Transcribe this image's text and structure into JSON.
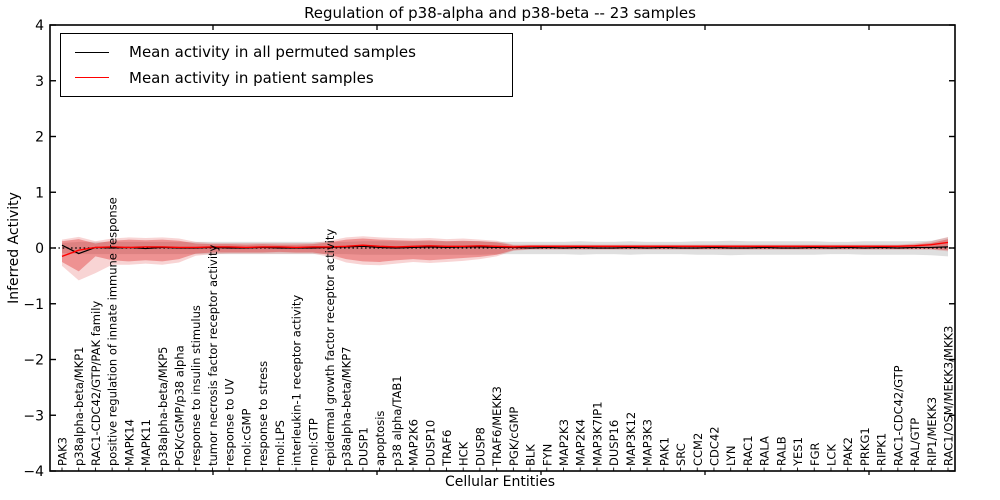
{
  "title": "Regulation of p38-alpha and p38-beta -- 23 samples",
  "axes": {
    "xlabel": "Cellular Entities",
    "ylabel": "Inferred Activity",
    "ytick_labels": [
      "4",
      "3",
      "2",
      "1",
      "0",
      "−1",
      "−2",
      "−3",
      "−4"
    ],
    "ytick_values": [
      4,
      3,
      2,
      1,
      0,
      -1,
      -2,
      -3,
      -4
    ],
    "ylim": [
      -4,
      4
    ]
  },
  "legend": {
    "entries": [
      {
        "label": "Mean activity in all permuted samples",
        "color": "#000000"
      },
      {
        "label": "Mean activity in patient samples",
        "color": "#ff0000"
      }
    ]
  },
  "colors": {
    "permuted_line": "#000000",
    "patient_line": "#ff0000",
    "patient_band": "#dc2828",
    "permuted_band": "#8c8c8c",
    "zero_line": "#000000"
  },
  "chart_data": {
    "type": "line",
    "title": "Regulation of p38-alpha and p38-beta -- 23 samples",
    "xlabel": "Cellular Entities",
    "ylabel": "Inferred Activity",
    "ylim": [
      -4,
      4
    ],
    "grid": false,
    "legend_position": "upper left",
    "zero_reference_line": true,
    "categories": [
      "PAK3",
      "p38alpha-beta/MKP1",
      "RAC1-CDC42/GTP/PAK family",
      "positive regulation of innate immune response",
      "MAPK14",
      "MAPK11",
      "p38alpha-beta/MKP5",
      "PGK/cGMP/p38 alpha",
      "response to insulin stimulus",
      "tumor necrosis factor receptor activity",
      "response to UV",
      "mol:cGMP",
      "response to stress",
      "mol:LPS",
      "interleukin-1 receptor activity",
      "mol:GTP",
      "epidermal growth factor receptor activity",
      "p38alpha-beta/MKP7",
      "DUSP1",
      "apoptosis",
      "p38 alpha/TAB1",
      "MAP2K6",
      "DUSP10",
      "TRAF6",
      "HCK",
      "DUSP8",
      "TRAF6/MEKK3",
      "PGK/cGMP",
      "BLK",
      "FYN",
      "MAP2K3",
      "MAP2K4",
      "MAP3K7IP1",
      "DUSP16",
      "MAP3K12",
      "MAP3K3",
      "PAK1",
      "SRC",
      "CCM2",
      "CDC42",
      "LYN",
      "RAC1",
      "RALA",
      "RALB",
      "YES1",
      "FGR",
      "LCK",
      "PAK2",
      "PRKG1",
      "RIPK1",
      "RAC1-CDC42/GTP",
      "RAL/GTP",
      "RIP1/MEKK3",
      "RAC1/OSM/MEKK3/MKK3"
    ],
    "series": [
      {
        "name": "Mean activity in all permuted samples",
        "color": "#000000",
        "width": 1.2,
        "values": [
          0.05,
          -0.1,
          0.01,
          0.0,
          0.01,
          -0.01,
          0.01,
          0.0,
          0.0,
          0.01,
          0.0,
          0.0,
          0.01,
          0.0,
          0.0,
          0.0,
          0.01,
          0.02,
          0.03,
          0.01,
          0.0,
          0.01,
          0.02,
          0.01,
          0.02,
          0.02,
          0.01,
          0.01,
          0.0,
          0.01,
          0.0,
          0.01,
          0.0,
          0.0,
          0.01,
          0.0,
          0.01,
          0.0,
          0.0,
          0.01,
          0.0,
          0.0,
          0.01,
          0.0,
          0.0,
          0.01,
          0.0,
          0.01,
          0.0,
          0.01,
          0.0,
          0.01,
          0.01,
          0.02
        ]
      },
      {
        "name": "Mean activity in patient samples",
        "color": "#ff0000",
        "width": 1.4,
        "values": [
          -0.15,
          -0.04,
          0.01,
          0.02,
          0.01,
          0.02,
          0.02,
          0.01,
          0.01,
          0.02,
          0.02,
          0.01,
          0.02,
          0.02,
          0.01,
          0.02,
          0.02,
          0.03,
          0.05,
          0.03,
          0.02,
          0.03,
          0.04,
          0.03,
          0.03,
          0.04,
          0.03,
          0.02,
          0.03,
          0.03,
          0.03,
          0.03,
          0.03,
          0.03,
          0.03,
          0.03,
          0.03,
          0.03,
          0.03,
          0.03,
          0.03,
          0.03,
          0.03,
          0.03,
          0.03,
          0.03,
          0.03,
          0.03,
          0.03,
          0.03,
          0.03,
          0.04,
          0.06,
          0.1
        ]
      }
    ],
    "bands": [
      {
        "name": "permuted-std",
        "color": "#8c8c8c",
        "opacity": 0.28,
        "upper": [
          0.09,
          0.11,
          0.11,
          0.11,
          0.11,
          0.11,
          0.11,
          0.11,
          0.11,
          0.11,
          0.11,
          0.11,
          0.11,
          0.11,
          0.11,
          0.11,
          0.11,
          0.11,
          0.12,
          0.12,
          0.12,
          0.12,
          0.12,
          0.12,
          0.12,
          0.12,
          0.11,
          0.11,
          0.11,
          0.11,
          0.11,
          0.12,
          0.11,
          0.11,
          0.12,
          0.11,
          0.11,
          0.11,
          0.12,
          0.12,
          0.13,
          0.12,
          0.12,
          0.12,
          0.12,
          0.12,
          0.11,
          0.11,
          0.12,
          0.12,
          0.12,
          0.12,
          0.13,
          0.19
        ],
        "lower": [
          -0.09,
          -0.11,
          -0.11,
          -0.11,
          -0.11,
          -0.11,
          -0.11,
          -0.11,
          -0.11,
          -0.11,
          -0.11,
          -0.11,
          -0.11,
          -0.11,
          -0.11,
          -0.11,
          -0.11,
          -0.11,
          -0.12,
          -0.12,
          -0.12,
          -0.12,
          -0.12,
          -0.12,
          -0.12,
          -0.12,
          -0.11,
          -0.11,
          -0.11,
          -0.11,
          -0.11,
          -0.12,
          -0.11,
          -0.11,
          -0.12,
          -0.11,
          -0.11,
          -0.11,
          -0.12,
          -0.12,
          -0.13,
          -0.12,
          -0.12,
          -0.12,
          -0.12,
          -0.12,
          -0.11,
          -0.11,
          -0.12,
          -0.12,
          -0.12,
          -0.12,
          -0.13,
          -0.15
        ]
      },
      {
        "name": "patient-std-outer",
        "color": "#dc2828",
        "opacity": 0.2,
        "upper": [
          0.15,
          0.2,
          0.12,
          0.17,
          0.19,
          0.18,
          0.19,
          0.17,
          0.11,
          0.09,
          0.09,
          0.09,
          0.09,
          0.09,
          0.09,
          0.09,
          0.13,
          0.19,
          0.21,
          0.19,
          0.18,
          0.17,
          0.18,
          0.16,
          0.17,
          0.15,
          0.13,
          0.06,
          0.06,
          0.06,
          0.06,
          0.06,
          0.06,
          0.06,
          0.06,
          0.06,
          0.06,
          0.06,
          0.06,
          0.06,
          0.06,
          0.06,
          0.06,
          0.06,
          0.06,
          0.06,
          0.06,
          0.06,
          0.06,
          0.06,
          0.06,
          0.08,
          0.12,
          0.2
        ],
        "lower": [
          -0.32,
          -0.58,
          -0.45,
          -0.3,
          -0.3,
          -0.28,
          -0.3,
          -0.26,
          -0.14,
          -0.11,
          -0.1,
          -0.1,
          -0.1,
          -0.1,
          -0.1,
          -0.1,
          -0.16,
          -0.26,
          -0.3,
          -0.31,
          -0.28,
          -0.25,
          -0.27,
          -0.25,
          -0.23,
          -0.2,
          -0.15,
          -0.05,
          -0.03,
          -0.03,
          -0.03,
          -0.03,
          -0.03,
          -0.03,
          -0.03,
          -0.03,
          -0.03,
          -0.03,
          -0.03,
          -0.03,
          -0.03,
          -0.03,
          -0.03,
          -0.03,
          -0.03,
          -0.03,
          -0.03,
          -0.03,
          -0.03,
          -0.03,
          -0.03,
          -0.03,
          -0.03,
          -0.06
        ]
      },
      {
        "name": "patient-std-inner",
        "color": "#dc2828",
        "opacity": 0.38,
        "upper": [
          0.12,
          0.16,
          0.08,
          0.13,
          0.15,
          0.14,
          0.15,
          0.13,
          0.08,
          0.07,
          0.07,
          0.06,
          0.07,
          0.06,
          0.06,
          0.07,
          0.1,
          0.15,
          0.17,
          0.15,
          0.14,
          0.13,
          0.14,
          0.12,
          0.13,
          0.12,
          0.1,
          0.05,
          0.05,
          0.05,
          0.05,
          0.05,
          0.05,
          0.05,
          0.05,
          0.05,
          0.05,
          0.05,
          0.05,
          0.05,
          0.05,
          0.05,
          0.05,
          0.05,
          0.05,
          0.05,
          0.05,
          0.05,
          0.05,
          0.05,
          0.05,
          0.06,
          0.09,
          0.16
        ],
        "lower": [
          -0.25,
          -0.42,
          -0.15,
          -0.22,
          -0.24,
          -0.22,
          -0.24,
          -0.2,
          -0.1,
          -0.08,
          -0.08,
          -0.08,
          -0.08,
          -0.07,
          -0.08,
          -0.08,
          -0.12,
          -0.2,
          -0.24,
          -0.25,
          -0.22,
          -0.2,
          -0.22,
          -0.2,
          -0.18,
          -0.16,
          -0.12,
          -0.04,
          -0.02,
          -0.02,
          -0.02,
          -0.02,
          -0.02,
          -0.02,
          -0.02,
          -0.02,
          -0.02,
          -0.02,
          -0.02,
          -0.02,
          -0.02,
          -0.02,
          -0.02,
          -0.02,
          -0.02,
          -0.02,
          -0.02,
          -0.02,
          -0.02,
          -0.02,
          -0.02,
          -0.02,
          -0.02,
          -0.04
        ]
      }
    ]
  }
}
